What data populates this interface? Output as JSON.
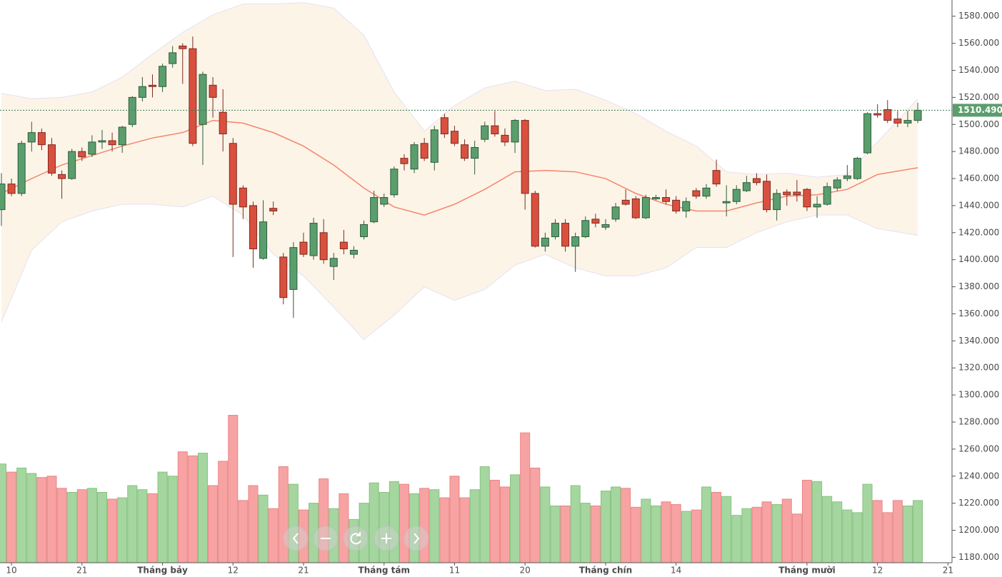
{
  "chart_data": {
    "type": "candlestick",
    "candles": {
      "open": [
        1437,
        1456,
        1449,
        1487,
        1494,
        1485,
        1463,
        1460,
        1480,
        1478,
        1487,
        1488,
        1485,
        1500,
        1520,
        1529,
        1528,
        1545,
        1558,
        1556,
        1500,
        1529,
        1509,
        1486,
        1453,
        1440,
        1401,
        1438,
        1402,
        1378,
        1413,
        1403,
        1420,
        1395,
        1413,
        1404,
        1417,
        1428,
        1441,
        1448,
        1475,
        1467,
        1486,
        1472,
        1505,
        1495,
        1485,
        1475,
        1489,
        1499,
        1492,
        1487,
        1503,
        1449,
        1410,
        1417,
        1427,
        1410,
        1417,
        1430,
        1424,
        1430,
        1444,
        1445,
        1431,
        1445,
        1446,
        1444,
        1436,
        1451,
        1447,
        1466,
        1442,
        1443,
        1451,
        1460,
        1458,
        1437,
        1450,
        1450,
        1452,
        1439,
        1441,
        1453,
        1460,
        1460,
        1479,
        1508,
        1511,
        1504,
        1501,
        1503
      ],
      "high": [
        1464,
        1460,
        1488,
        1502,
        1497,
        1490,
        1466,
        1482,
        1483,
        1492,
        1496,
        1494,
        1499,
        1521,
        1535,
        1537,
        1545,
        1558,
        1560,
        1565,
        1539,
        1535,
        1526,
        1490,
        1455,
        1443,
        1444,
        1443,
        1405,
        1413,
        1420,
        1431,
        1430,
        1405,
        1422,
        1410,
        1429,
        1451,
        1449,
        1469,
        1478,
        1487,
        1490,
        1499,
        1508,
        1499,
        1489,
        1488,
        1502,
        1510,
        1497,
        1504,
        1504,
        1451,
        1420,
        1430,
        1430,
        1420,
        1432,
        1434,
        1430,
        1442,
        1452,
        1447,
        1448,
        1448,
        1452,
        1447,
        1446,
        1453,
        1456,
        1474,
        1455,
        1455,
        1462,
        1464,
        1463,
        1452,
        1452,
        1459,
        1453,
        1447,
        1457,
        1461,
        1470,
        1476,
        1509,
        1515,
        1518,
        1510,
        1510,
        1516
      ],
      "low": [
        1425,
        1447,
        1447,
        1480,
        1481,
        1462,
        1445,
        1459,
        1473,
        1476,
        1482,
        1480,
        1479,
        1498,
        1517,
        1520,
        1524,
        1542,
        1530,
        1484,
        1470,
        1505,
        1480,
        1402,
        1430,
        1394,
        1400,
        1433,
        1367,
        1357,
        1402,
        1400,
        1397,
        1385,
        1404,
        1401,
        1415,
        1427,
        1439,
        1446,
        1466,
        1464,
        1473,
        1466,
        1490,
        1484,
        1473,
        1463,
        1487,
        1491,
        1484,
        1479,
        1437,
        1409,
        1406,
        1415,
        1406,
        1391,
        1416,
        1424,
        1422,
        1428,
        1440,
        1430,
        1430,
        1444,
        1441,
        1434,
        1431,
        1445,
        1445,
        1454,
        1432,
        1441,
        1450,
        1455,
        1435,
        1429,
        1440,
        1443,
        1436,
        1431,
        1440,
        1451,
        1458,
        1459,
        1478,
        1505,
        1501,
        1498,
        1498,
        1501
      ],
      "close": [
        1456,
        1449,
        1486,
        1494,
        1485,
        1464,
        1460,
        1480,
        1476,
        1487,
        1488,
        1485,
        1498,
        1520,
        1528,
        1528,
        1543,
        1553,
        1556,
        1486,
        1537,
        1520,
        1493,
        1441,
        1439,
        1408,
        1428,
        1436,
        1372,
        1409,
        1404,
        1427,
        1400,
        1401,
        1408,
        1407,
        1426,
        1446,
        1446,
        1467,
        1471,
        1485,
        1475,
        1496,
        1493,
        1486,
        1475,
        1483,
        1499,
        1493,
        1487,
        1503,
        1449,
        1410,
        1416,
        1427,
        1410,
        1417,
        1429,
        1427,
        1426,
        1439,
        1441,
        1431,
        1446,
        1446,
        1443,
        1436,
        1443,
        1447,
        1453,
        1456,
        1443,
        1452,
        1457,
        1457,
        1437,
        1449,
        1448,
        1448,
        1439,
        1441,
        1454,
        1459,
        1462,
        1475,
        1508,
        1507,
        1503,
        1501,
        1503,
        1510.49
      ]
    },
    "volume": [
      1249,
      1243,
      1246,
      1242,
      1239,
      1240,
      1231,
      1228,
      1230,
      1231,
      1228,
      1223,
      1224,
      1233,
      1230,
      1227,
      1243,
      1240,
      1258,
      1255,
      1257,
      1233,
      1251,
      1285,
      1222,
      1233,
      1226,
      1216,
      1247,
      1234,
      1215,
      1220,
      1238,
      1216,
      1227,
      1208,
      1220,
      1235,
      1228,
      1236,
      1234,
      1227,
      1231,
      1230,
      1224,
      1240,
      1224,
      1230,
      1247,
      1237,
      1232,
      1241,
      1272,
      1246,
      1232,
      1218,
      1218,
      1233,
      1220,
      1218,
      1229,
      1232,
      1231,
      1217,
      1223,
      1218,
      1221,
      1219,
      1214,
      1215,
      1232,
      1228,
      1225,
      1211,
      1216,
      1217,
      1221,
      1219,
      1223,
      1212,
      1237,
      1236,
      1225,
      1221,
      1215,
      1213,
      1234,
      1222,
      1213,
      1222,
      1218,
      1222
    ],
    "bands": {
      "x": [
        0,
        3,
        6,
        9,
        12,
        15,
        18,
        21,
        24,
        27,
        30,
        33,
        36,
        39,
        42,
        45,
        48,
        51,
        54,
        57,
        60,
        63,
        66,
        69,
        72,
        75,
        78,
        81,
        84,
        87,
        91
      ],
      "upper": [
        1523,
        1519,
        1520,
        1524,
        1535,
        1552,
        1568,
        1581,
        1589,
        1589,
        1590,
        1586,
        1566,
        1524,
        1495,
        1514,
        1527,
        1532,
        1525,
        1526,
        1518,
        1508,
        1495,
        1484,
        1465,
        1463,
        1464,
        1461,
        1463,
        1487,
        1519
      ],
      "middle": [
        1449,
        1460,
        1470,
        1477,
        1484,
        1490,
        1494,
        1503,
        1501,
        1494,
        1484,
        1470,
        1453,
        1439,
        1433,
        1441,
        1452,
        1465,
        1466,
        1465,
        1460,
        1449,
        1441,
        1436,
        1436,
        1442,
        1447,
        1448,
        1452,
        1463,
        1468
      ],
      "lower": [
        1354,
        1407,
        1428,
        1436,
        1441,
        1441,
        1439,
        1447,
        1433,
        1404,
        1388,
        1365,
        1341,
        1359,
        1380,
        1370,
        1378,
        1396,
        1404,
        1394,
        1388,
        1388,
        1394,
        1409,
        1409,
        1420,
        1428,
        1433,
        1433,
        1423,
        1418
      ]
    },
    "last_price": {
      "value": 1510.49,
      "label": "1510.490"
    },
    "xlim": [
      -0.14,
      94.4
    ],
    "xticks": [
      {
        "value": 1,
        "label": "10"
      },
      {
        "value": 8,
        "label": "21"
      },
      {
        "value": 16,
        "label": "Tháng bảy"
      },
      {
        "value": 23,
        "label": "12"
      },
      {
        "value": 30,
        "label": "21"
      },
      {
        "value": 38,
        "label": "Tháng tám"
      },
      {
        "value": 45,
        "label": "11"
      },
      {
        "value": 52,
        "label": "20"
      },
      {
        "value": 60,
        "label": "Tháng chín"
      },
      {
        "value": 67,
        "label": "14"
      },
      {
        "value": 80,
        "label": "Tháng mười"
      },
      {
        "value": 87,
        "label": "12"
      },
      {
        "value": 94,
        "label": "21"
      }
    ],
    "ylim": [
      1176,
      1592
    ],
    "yticks": [
      {
        "value": 1180,
        "label": "1180.000"
      },
      {
        "value": 1200,
        "label": "1200.000"
      },
      {
        "value": 1220,
        "label": "1220.000"
      },
      {
        "value": 1240,
        "label": "1240.000"
      },
      {
        "value": 1260,
        "label": "1260.000"
      },
      {
        "value": 1280,
        "label": "1280.000"
      },
      {
        "value": 1300,
        "label": "1300.000"
      },
      {
        "value": 1320,
        "label": "1320.000"
      },
      {
        "value": 1340,
        "label": "1340.000"
      },
      {
        "value": 1360,
        "label": "1360.000"
      },
      {
        "value": 1380,
        "label": "1380.000"
      },
      {
        "value": 1400,
        "label": "1400.000"
      },
      {
        "value": 1420,
        "label": "1420.000"
      },
      {
        "value": 1440,
        "label": "1440.000"
      },
      {
        "value": 1460,
        "label": "1460.000"
      },
      {
        "value": 1480,
        "label": "1480.000"
      },
      {
        "value": 1500,
        "label": "1500.000"
      },
      {
        "value": 1520,
        "label": "1520.000"
      },
      {
        "value": 1540,
        "label": "1540.000"
      },
      {
        "value": 1560,
        "label": "1560.000"
      },
      {
        "value": 1580,
        "label": "1580.000"
      }
    ],
    "up_color": "#5b9e6e",
    "down_color": "#d9503f",
    "volume_up_color": "#a5d6a0",
    "volume_down_color": "#f8a3a3",
    "band_color": "#fdf4e8",
    "middle_color": "#f5856a",
    "price_label_color": "#5b9e6e"
  }
}
